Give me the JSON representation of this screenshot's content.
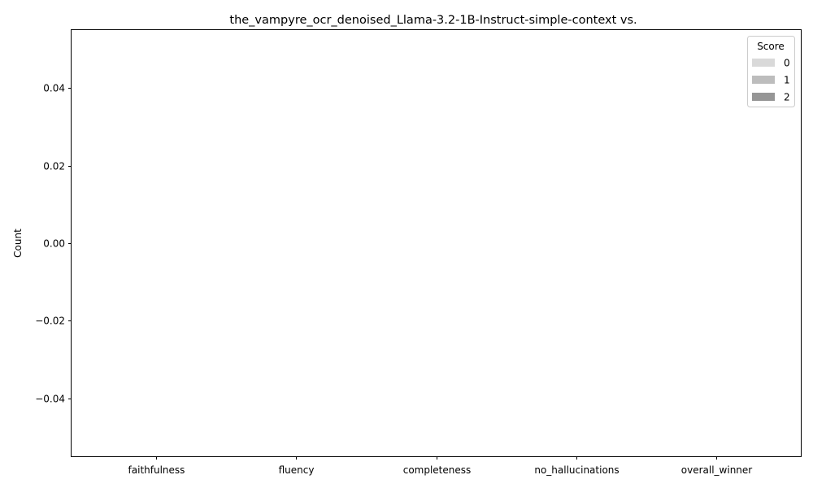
{
  "chart_data": {
    "type": "bar",
    "title": "the_vampyre_ocr_denoised_Llama-3.2-1B-Instruct-simple-context vs.",
    "xlabel": "",
    "ylabel": "Count",
    "categories": [
      "faithfulness",
      "fluency",
      "completeness",
      "no_hallucinations",
      "overall_winner"
    ],
    "ylim": [
      -0.055,
      0.055
    ],
    "yticks": [
      -0.04,
      -0.02,
      0.0,
      0.02,
      0.04
    ],
    "ytick_labels": [
      "−0.04",
      "−0.02",
      "0.00",
      "0.02",
      "0.04"
    ],
    "grid": false,
    "legend": {
      "title": "Score",
      "placement": "top-right",
      "entries": [
        {
          "label": "0",
          "color": "#d9d9d9"
        },
        {
          "label": "1",
          "color": "#bdbdbd"
        },
        {
          "label": "2",
          "color": "#969696"
        }
      ]
    },
    "series": [
      {
        "name": "0",
        "values": [
          0,
          0,
          0,
          0,
          0
        ]
      },
      {
        "name": "1",
        "values": [
          0,
          0,
          0,
          0,
          0
        ]
      },
      {
        "name": "2",
        "values": [
          0,
          0,
          0,
          0,
          0
        ]
      }
    ]
  }
}
